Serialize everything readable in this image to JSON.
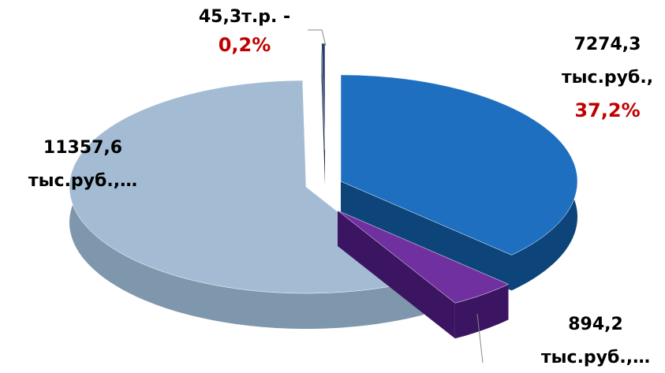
{
  "chart_data": {
    "type": "pie",
    "values": [
      7274.3,
      894.2,
      11357.6,
      45.3
    ],
    "value_labels": [
      [
        "7274,3",
        "тыс.руб.,"
      ],
      [
        "894,2",
        "тыс.руб.,…"
      ],
      [
        "11357,6",
        "тыс.руб.,…"
      ],
      [
        "45,3т.р. -"
      ]
    ],
    "percent_labels": [
      "37,2%",
      null,
      null,
      "0,2%"
    ],
    "colors": [
      "#1f6fc0",
      "#7030a0",
      "#a3bcd4",
      "#2a3f6a"
    ],
    "side_colors": [
      "#0d4479",
      "#3c1562",
      "#7f97ad",
      "#18284a"
    ]
  }
}
